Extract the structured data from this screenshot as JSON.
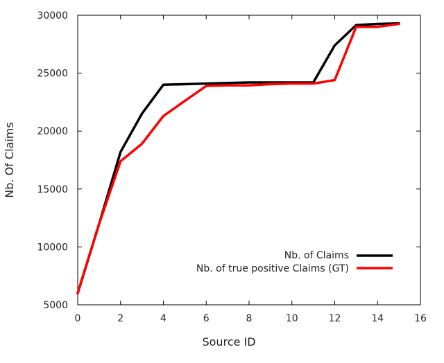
{
  "chart_data": {
    "type": "line",
    "title": "",
    "xlabel": "Source ID",
    "ylabel": "Nb. Of Claims",
    "xlim": [
      0,
      16
    ],
    "ylim": [
      5000,
      30000
    ],
    "xticks": [
      0,
      2,
      4,
      6,
      8,
      10,
      12,
      14,
      16
    ],
    "yticks": [
      5000,
      10000,
      15000,
      20000,
      25000,
      30000
    ],
    "grid": false,
    "legend_position": "bottom-right",
    "series": [
      {
        "name": "Nb. of Claims",
        "color": "#000000",
        "x": [
          0,
          1,
          2,
          3,
          4,
          5,
          6,
          7,
          8,
          9,
          10,
          11,
          12,
          13,
          14,
          15
        ],
        "y": [
          6000,
          12000,
          18200,
          21500,
          24000,
          24050,
          24100,
          24150,
          24200,
          24200,
          24200,
          24200,
          27400,
          29150,
          29250,
          29300
        ]
      },
      {
        "name": "Nb. of true positive Claims (GT)",
        "color": "#ff0000",
        "x": [
          0,
          1,
          2,
          3,
          4,
          5,
          6,
          7,
          8,
          9,
          10,
          11,
          12,
          13,
          14,
          15
        ],
        "y": [
          6000,
          12000,
          17400,
          18900,
          21300,
          22600,
          23900,
          23950,
          23950,
          24050,
          24100,
          24100,
          24400,
          29000,
          29000,
          29250
        ]
      }
    ]
  }
}
